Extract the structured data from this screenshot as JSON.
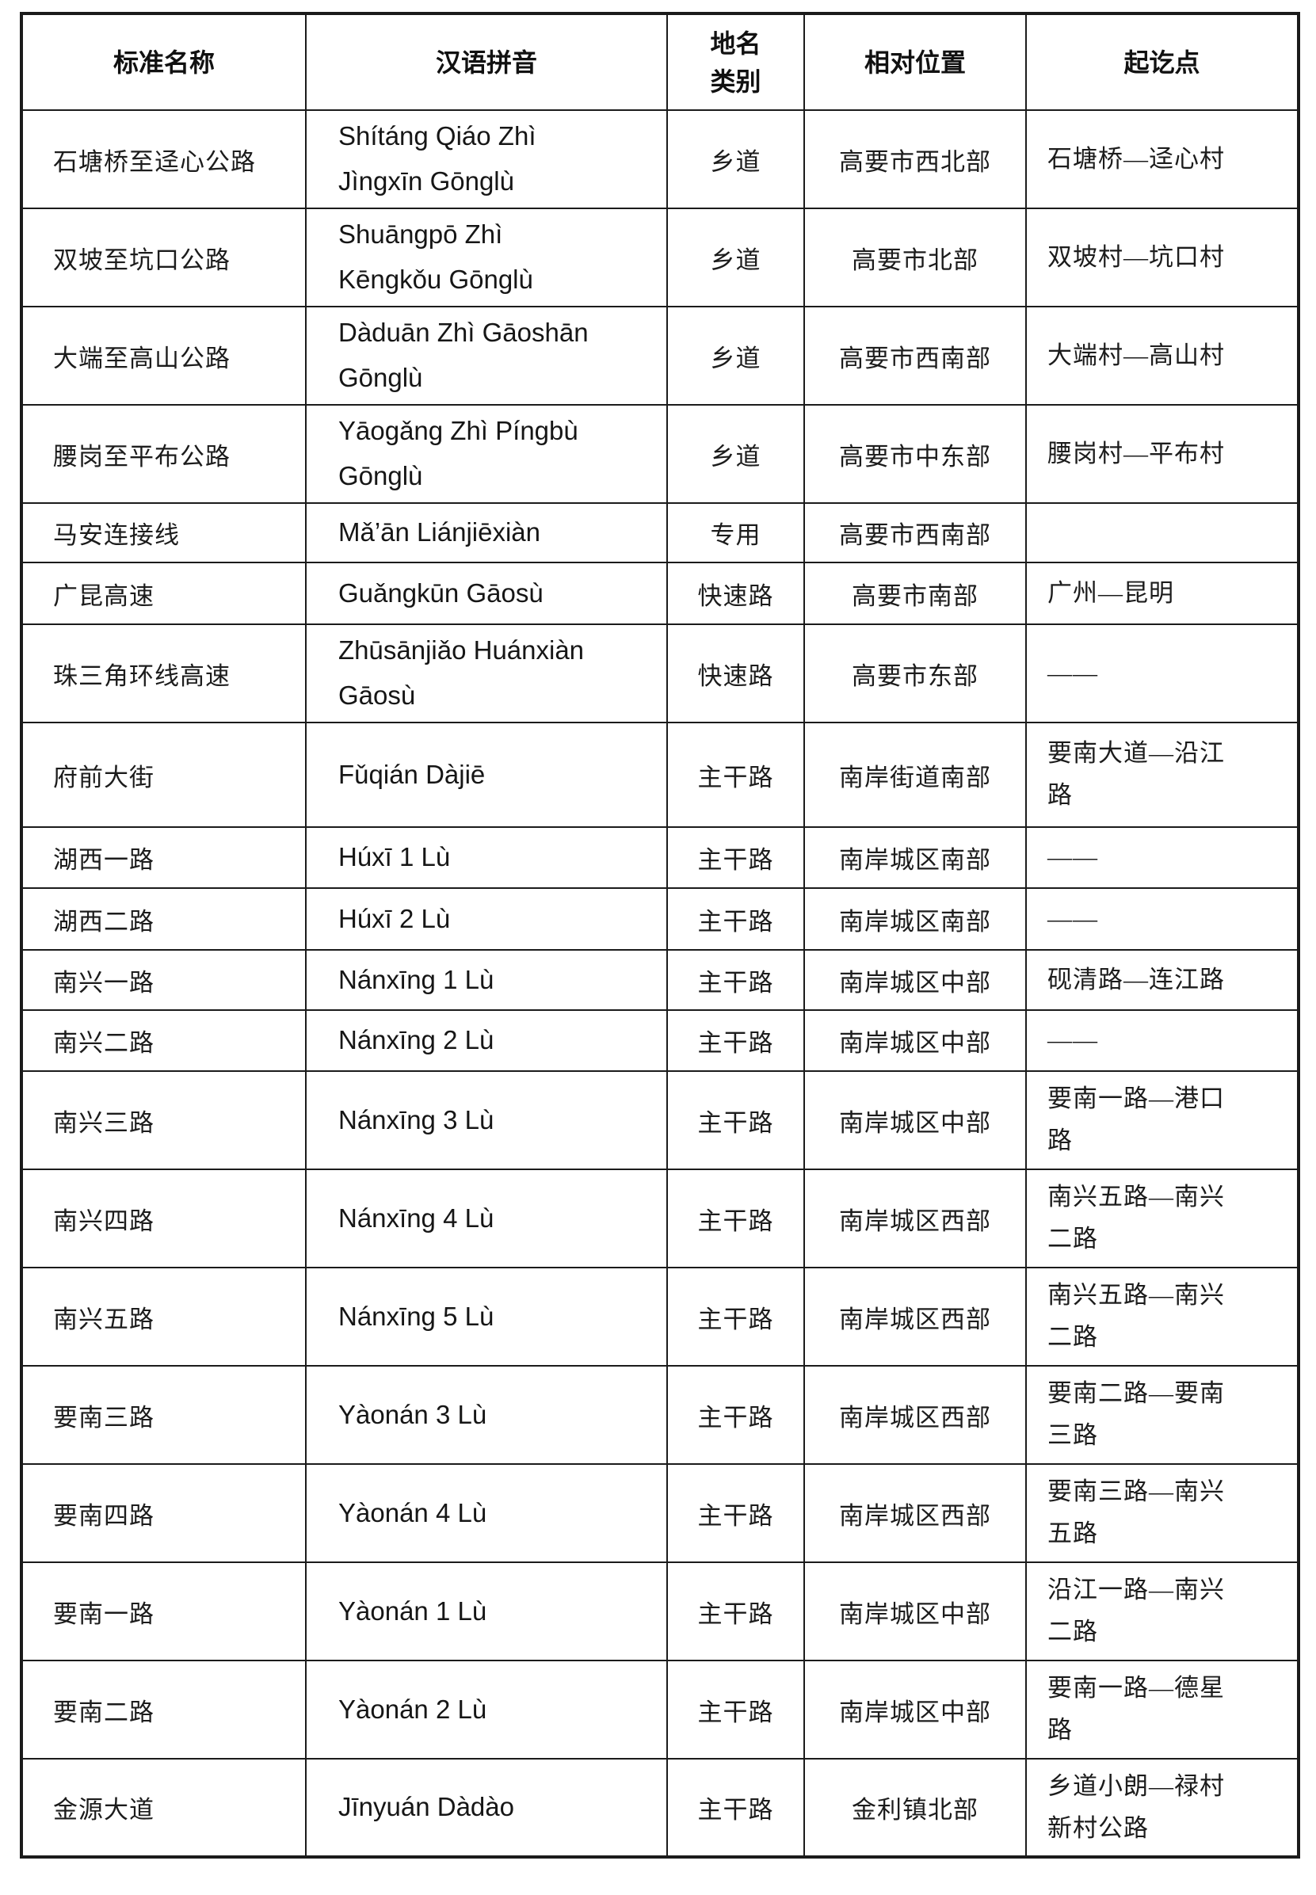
{
  "table": {
    "headers": [
      "标准名称",
      "汉语拼音",
      "地名类别",
      "相对位置",
      "起讫点"
    ],
    "rows": [
      {
        "name": "石塘桥至迳心公路",
        "pinyin": "Shítáng Qiáo Zhì\nJìngxīn Gōnglù",
        "category": "乡道",
        "position": "高要市西北部",
        "endpoints": "石塘桥—迳心村"
      },
      {
        "name": "双坡至坑口公路",
        "pinyin": "Shuāngpō Zhì\nKēngkǒu Gōnglù",
        "category": "乡道",
        "position": "高要市北部",
        "endpoints": "双坡村—坑口村"
      },
      {
        "name": "大端至高山公路",
        "pinyin": "Dàduān Zhì Gāoshān\nGōnglù",
        "category": "乡道",
        "position": "高要市西南部",
        "endpoints": "大端村—高山村"
      },
      {
        "name": "腰岗至平布公路",
        "pinyin": "Yāogǎng Zhì Píngbù\nGōnglù",
        "category": "乡道",
        "position": "高要市中东部",
        "endpoints": "腰岗村—平布村"
      },
      {
        "name": "马安连接线",
        "pinyin": "Mǎ’ān Liánjiēxiàn",
        "category": "专用",
        "position": "高要市西南部",
        "endpoints": ""
      },
      {
        "name": "广昆高速",
        "pinyin": "Guǎngkūn Gāosù",
        "category": "快速路",
        "position": "高要市南部",
        "endpoints": "广州—昆明"
      },
      {
        "name": "珠三角环线高速",
        "pinyin": "Zhūsānjiǎo Huánxiàn\nGāosù",
        "category": "快速路",
        "position": "高要市东部",
        "endpoints": "——"
      },
      {
        "name": "府前大街",
        "pinyin": "Fǔqián Dàjiē",
        "category": "主干路",
        "position": "南岸街道南部",
        "endpoints": "要南大道—沿江\n路"
      },
      {
        "name": "湖西一路",
        "pinyin": "Húxī 1 Lù",
        "category": "主干路",
        "position": "南岸城区南部",
        "endpoints": "——"
      },
      {
        "name": "湖西二路",
        "pinyin": "Húxī 2 Lù",
        "category": "主干路",
        "position": "南岸城区南部",
        "endpoints": "——"
      },
      {
        "name": "南兴一路",
        "pinyin": "Nánxīng 1 Lù",
        "category": "主干路",
        "position": "南岸城区中部",
        "endpoints": "砚清路—连江路"
      },
      {
        "name": "南兴二路",
        "pinyin": "Nánxīng 2 Lù",
        "category": "主干路",
        "position": "南岸城区中部",
        "endpoints": "——"
      },
      {
        "name": "南兴三路",
        "pinyin": "Nánxīng 3 Lù",
        "category": "主干路",
        "position": "南岸城区中部",
        "endpoints": "要南一路—港口\n路"
      },
      {
        "name": "南兴四路",
        "pinyin": "Nánxīng 4 Lù",
        "category": "主干路",
        "position": "南岸城区西部",
        "endpoints": "南兴五路—南兴\n二路"
      },
      {
        "name": "南兴五路",
        "pinyin": "Nánxīng 5 Lù",
        "category": "主干路",
        "position": "南岸城区西部",
        "endpoints": "南兴五路—南兴\n二路"
      },
      {
        "name": "要南三路",
        "pinyin": "Yàonán 3 Lù",
        "category": "主干路",
        "position": "南岸城区西部",
        "endpoints": "要南二路—要南\n三路"
      },
      {
        "name": "要南四路",
        "pinyin": "Yàonán 4 Lù",
        "category": "主干路",
        "position": "南岸城区西部",
        "endpoints": "要南三路—南兴\n五路"
      },
      {
        "name": "要南一路",
        "pinyin": "Yàonán 1 Lù",
        "category": "主干路",
        "position": "南岸城区中部",
        "endpoints": "沿江一路—南兴\n二路"
      },
      {
        "name": "要南二路",
        "pinyin": "Yàonán 2 Lù",
        "category": "主干路",
        "position": "南岸城区中部",
        "endpoints": "要南一路—德星\n路"
      },
      {
        "name": "金源大道",
        "pinyin": "Jīnyuán Dàdào",
        "category": "主干路",
        "position": "金利镇北部",
        "endpoints": "乡道小朗—禄村\n新村公路"
      }
    ]
  }
}
